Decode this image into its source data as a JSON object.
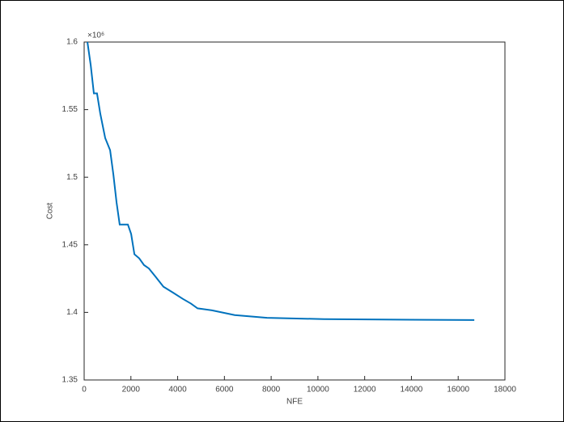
{
  "chart_data": {
    "type": "line",
    "x_label": "NFE",
    "y_label": "Cost",
    "y_exponent_label": "×10⁶",
    "color": "#0072BD",
    "x": [
      140,
      280,
      415,
      550,
      690,
      900,
      1110,
      1250,
      1385,
      1520,
      1870,
      2010,
      2150,
      2355,
      2560,
      2770,
      3050,
      3390,
      3810,
      4220,
      4570,
      4850,
      5470,
      6440,
      7820,
      10250,
      16690
    ],
    "values": [
      1.6,
      1.583,
      1.562,
      1.562,
      1.547,
      1.529,
      1.52,
      1.502,
      1.4815,
      1.465,
      1.465,
      1.458,
      1.443,
      1.44,
      1.435,
      1.4325,
      1.4265,
      1.419,
      1.4145,
      1.41,
      1.4065,
      1.403,
      1.4015,
      1.398,
      1.396,
      1.395,
      1.3943
    ],
    "xlim": [
      0,
      18000
    ],
    "xticks": [
      0,
      2000,
      4000,
      6000,
      8000,
      10000,
      12000,
      14000,
      16000,
      18000
    ],
    "ylim": [
      1.35,
      1.6
    ],
    "yticks": [
      1.35,
      1.4,
      1.45,
      1.5,
      1.55,
      1.6
    ]
  }
}
